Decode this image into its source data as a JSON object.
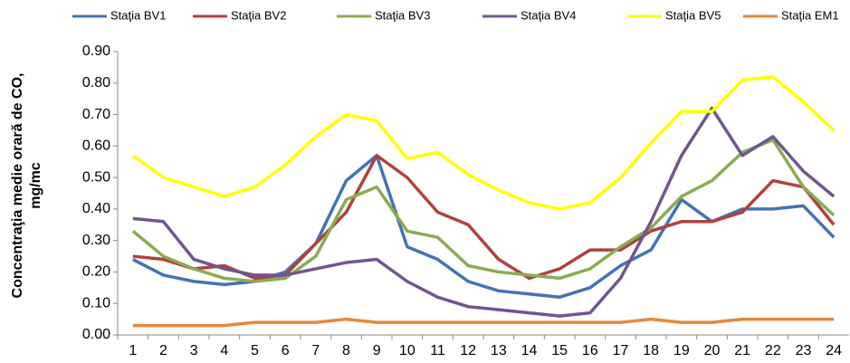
{
  "chart_data": {
    "type": "line",
    "y_label": [
      "Concentraţia medie orară de CO,",
      "mg/mc"
    ],
    "categories": [
      "1",
      "2",
      "3",
      "4",
      "5",
      "6",
      "7",
      "8",
      "9",
      "10",
      "11",
      "12",
      "13",
      "14",
      "15",
      "16",
      "17",
      "18",
      "19",
      "20",
      "21",
      "22",
      "23",
      "24"
    ],
    "series": [
      {
        "name": "Staţia BV1",
        "color": "#4174b6",
        "values": [
          0.24,
          0.19,
          0.17,
          0.16,
          0.17,
          0.2,
          0.29,
          0.49,
          0.57,
          0.28,
          0.24,
          0.17,
          0.14,
          0.13,
          0.12,
          0.15,
          0.22,
          0.27,
          0.43,
          0.36,
          0.4,
          0.4,
          0.41,
          0.31
        ]
      },
      {
        "name": "Staţia BV2",
        "color": "#b0413e",
        "values": [
          0.25,
          0.24,
          0.21,
          0.22,
          0.18,
          0.19,
          0.29,
          0.39,
          0.57,
          0.5,
          0.39,
          0.35,
          0.24,
          0.18,
          0.21,
          0.27,
          0.27,
          0.33,
          0.36,
          0.36,
          0.39,
          0.49,
          0.47,
          0.35
        ]
      },
      {
        "name": "Staţia BV3",
        "color": "#8bab52",
        "values": [
          0.33,
          0.25,
          0.21,
          0.18,
          0.17,
          0.18,
          0.25,
          0.43,
          0.47,
          0.33,
          0.31,
          0.22,
          0.2,
          0.19,
          0.18,
          0.21,
          0.28,
          0.34,
          0.44,
          0.49,
          0.58,
          0.62,
          0.47,
          0.38
        ]
      },
      {
        "name": "Staţia BV4",
        "color": "#71558f",
        "values": [
          0.37,
          0.36,
          0.24,
          0.21,
          0.19,
          0.19,
          0.21,
          0.23,
          0.24,
          0.17,
          0.12,
          0.09,
          0.08,
          0.07,
          0.06,
          0.07,
          0.18,
          0.36,
          0.57,
          0.72,
          0.57,
          0.63,
          0.52,
          0.44
        ]
      },
      {
        "name": "Staţia BV5",
        "color": "#ffff00",
        "values": [
          0.57,
          0.5,
          0.47,
          0.44,
          0.47,
          0.54,
          0.63,
          0.7,
          0.68,
          0.56,
          0.58,
          0.51,
          0.46,
          0.42,
          0.4,
          0.42,
          0.5,
          0.61,
          0.71,
          0.71,
          0.81,
          0.82,
          0.74,
          0.65
        ]
      },
      {
        "name": "Staţia EM1",
        "color": "#e5883c",
        "values": [
          0.03,
          0.03,
          0.03,
          0.03,
          0.04,
          0.04,
          0.04,
          0.05,
          0.04,
          0.04,
          0.04,
          0.04,
          0.04,
          0.04,
          0.04,
          0.04,
          0.04,
          0.05,
          0.04,
          0.04,
          0.05,
          0.05,
          0.05,
          0.05
        ]
      }
    ],
    "ylim": [
      0,
      0.9
    ],
    "yticks": [
      {
        "value": 0,
        "label": "0.00"
      },
      {
        "value": 0.1,
        "label": "0.10"
      },
      {
        "value": 0.2,
        "label": "0.20"
      },
      {
        "value": 0.3,
        "label": "0.30"
      },
      {
        "value": 0.4,
        "label": "0.40"
      },
      {
        "value": 0.5,
        "label": "0.50"
      },
      {
        "value": 0.6,
        "label": "0.60"
      },
      {
        "value": 0.7,
        "label": "0.70"
      },
      {
        "value": 0.8,
        "label": "0.80"
      },
      {
        "value": 0.9,
        "label": "0.90"
      }
    ],
    "grid": false
  }
}
